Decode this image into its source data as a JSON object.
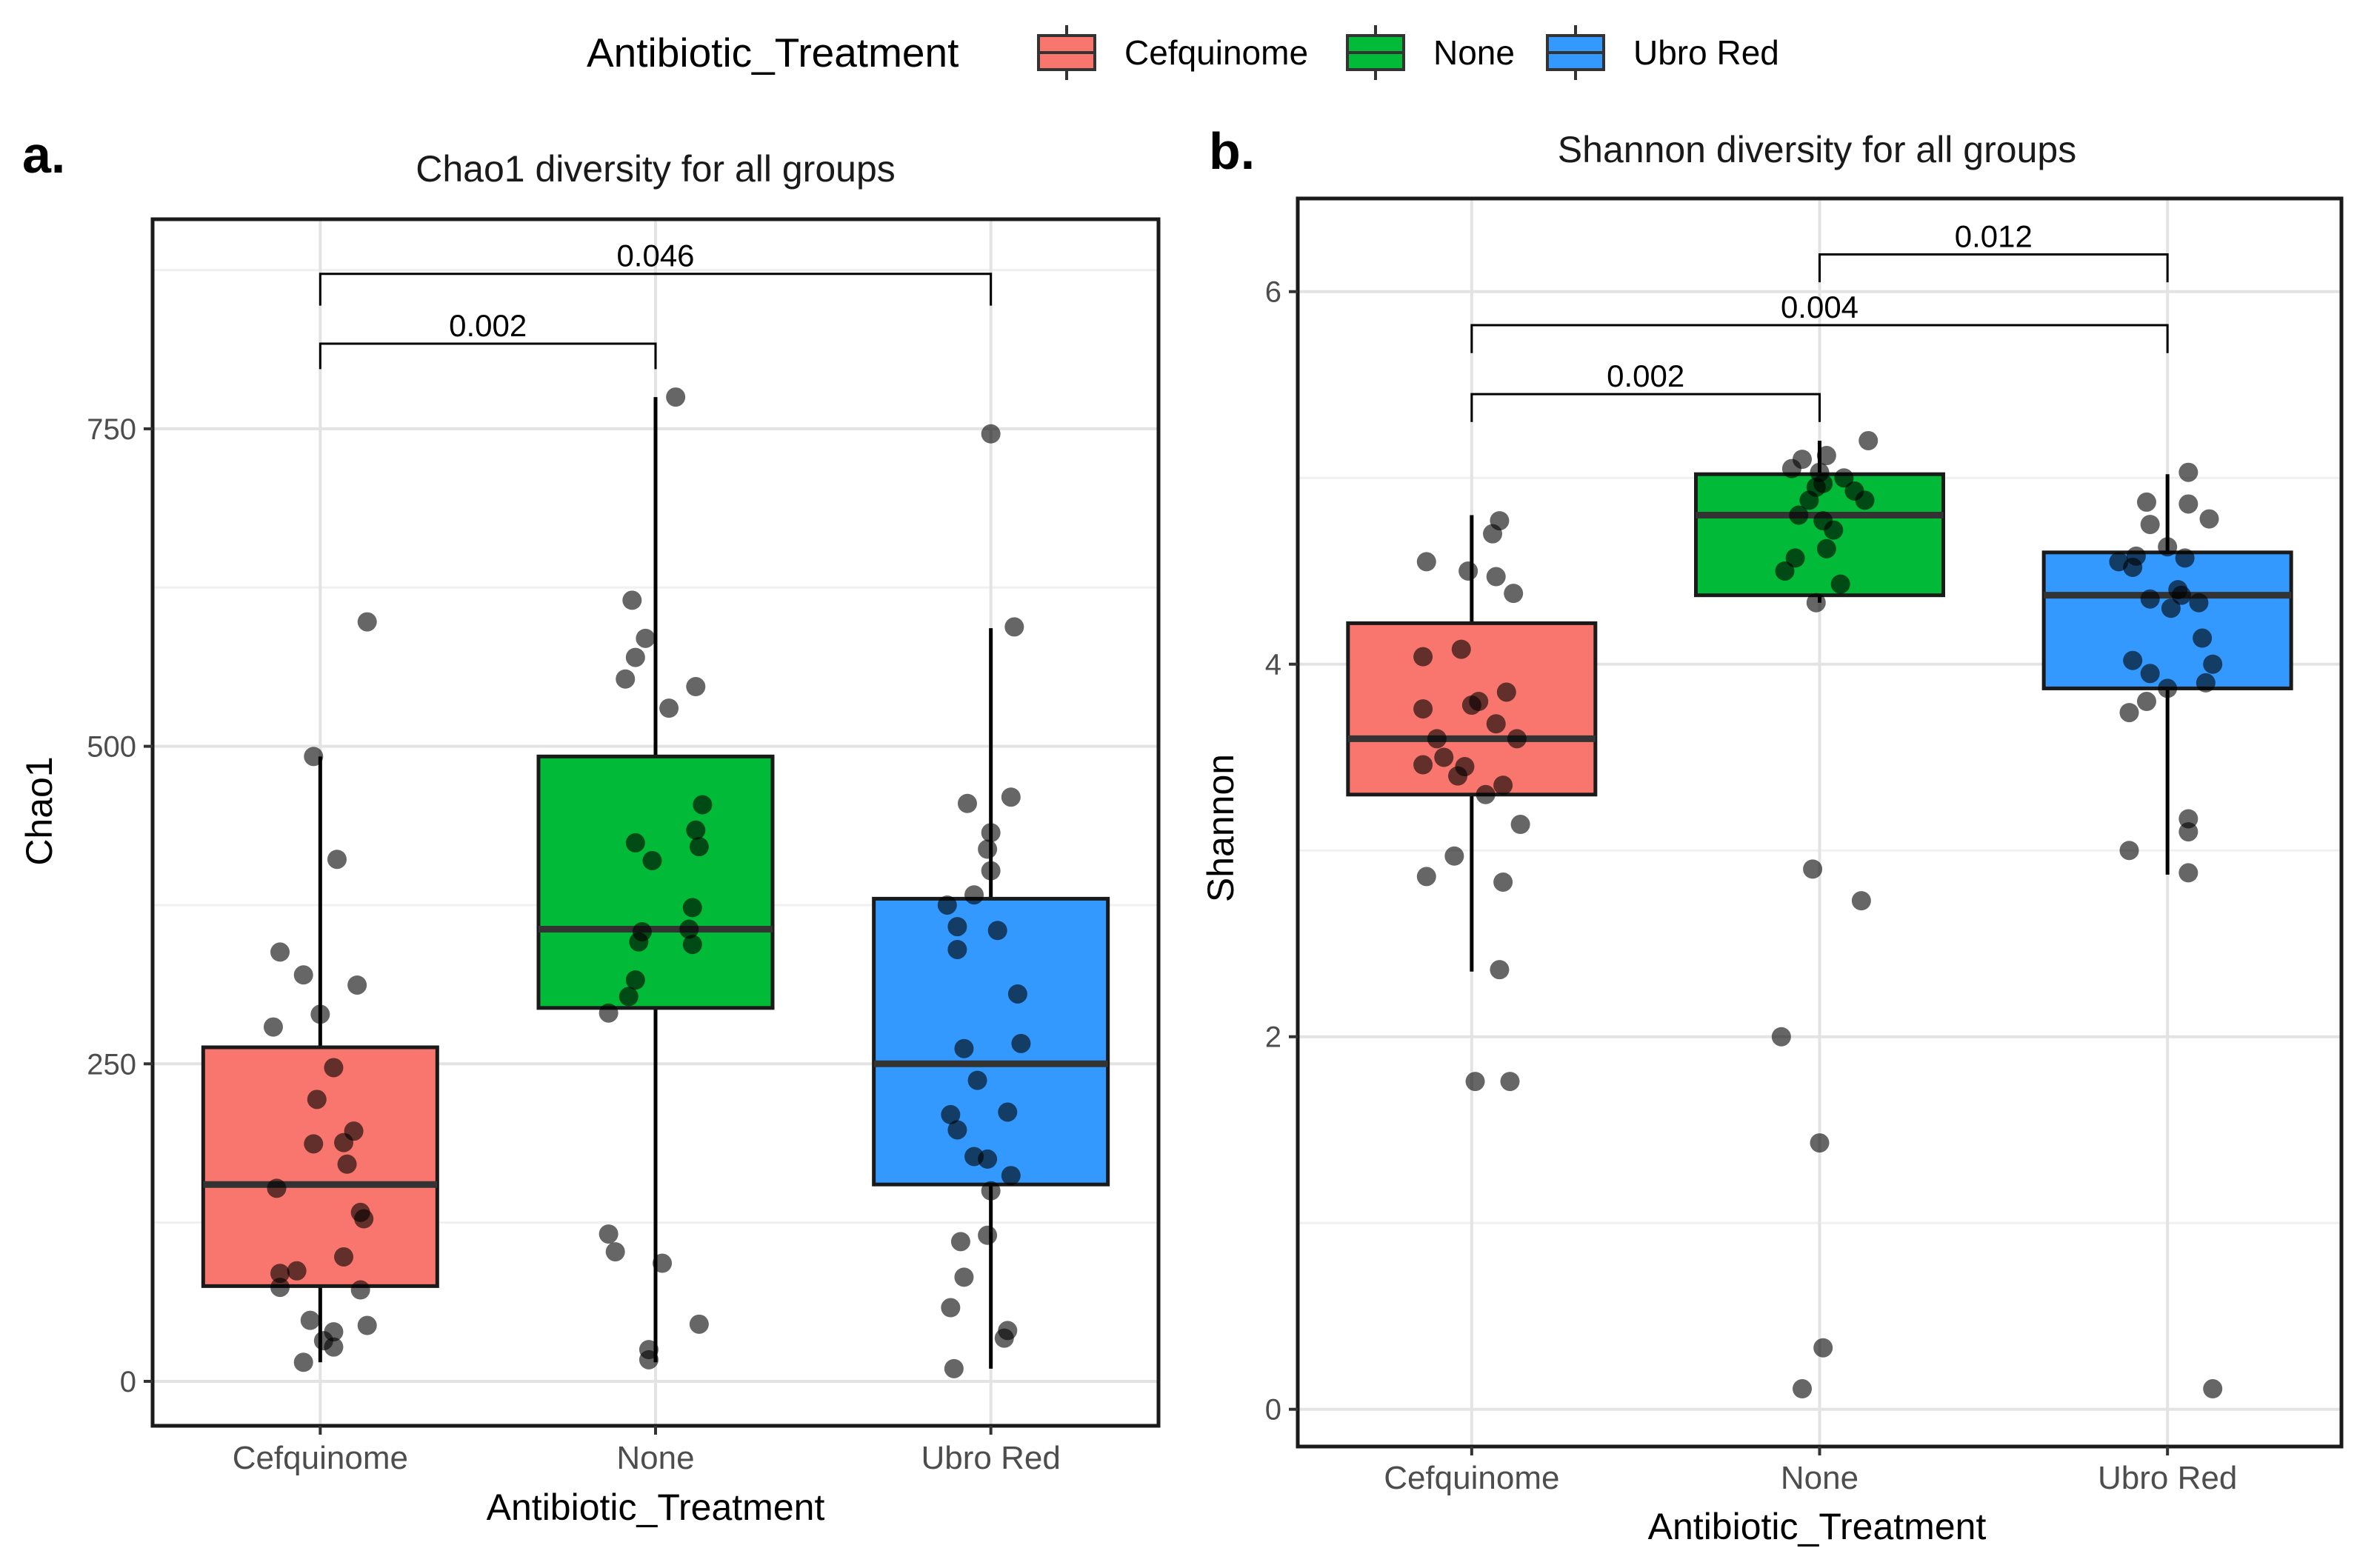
{
  "legend": {
    "title": "Antibiotic_Treatment",
    "entries": [
      {
        "label": "Cefquinome",
        "color": "#F8766D"
      },
      {
        "label": "None",
        "color": "#00BA38"
      },
      {
        "label": "Ubro Red",
        "color": "#3399FF"
      }
    ]
  },
  "chart_data": [
    {
      "panel": "a.",
      "type": "boxplot",
      "title": "Chao1 diversity for all groups",
      "xlabel": "Antibiotic_Treatment",
      "ylabel": "Chao1",
      "categories": [
        "Cefquinome",
        "None",
        "Ubro Red"
      ],
      "ylim": [
        -35,
        915
      ],
      "yticks": [
        0,
        250,
        500,
        750
      ],
      "grid": true,
      "boxes": [
        {
          "category": "Cefquinome",
          "q1": 75,
          "median": 155,
          "q3": 263,
          "whisker_low": 15,
          "whisker_high": 492
        },
        {
          "category": "None",
          "q1": 294,
          "median": 356,
          "q3": 492,
          "whisker_low": 15,
          "whisker_high": 775
        },
        {
          "category": "Ubro Red",
          "q1": 155,
          "median": 250,
          "q3": 380,
          "whisker_low": 10,
          "whisker_high": 593
        }
      ],
      "points": [
        [
          {
            "x": 0.14,
            "y": 598
          },
          {
            "x": -0.02,
            "y": 492
          },
          {
            "x": 0.05,
            "y": 411
          },
          {
            "x": -0.12,
            "y": 338
          },
          {
            "x": -0.05,
            "y": 320
          },
          {
            "x": 0.0,
            "y": 289
          },
          {
            "x": 0.11,
            "y": 312
          },
          {
            "x": -0.14,
            "y": 279
          },
          {
            "x": 0.04,
            "y": 247
          },
          {
            "x": 0.1,
            "y": 197
          },
          {
            "x": -0.01,
            "y": 222
          },
          {
            "x": 0.07,
            "y": 188
          },
          {
            "x": 0.08,
            "y": 171
          },
          {
            "x": -0.13,
            "y": 152
          },
          {
            "x": -0.02,
            "y": 187
          },
          {
            "x": 0.13,
            "y": 128
          },
          {
            "x": 0.12,
            "y": 133
          },
          {
            "x": 0.07,
            "y": 98
          },
          {
            "x": -0.12,
            "y": 85
          },
          {
            "x": -0.07,
            "y": 87
          },
          {
            "x": -0.12,
            "y": 74
          },
          {
            "x": 0.12,
            "y": 72
          },
          {
            "x": -0.03,
            "y": 48
          },
          {
            "x": 0.14,
            "y": 44
          },
          {
            "x": 0.04,
            "y": 39
          },
          {
            "x": 0.01,
            "y": 32
          },
          {
            "x": 0.04,
            "y": 27
          },
          {
            "x": -0.05,
            "y": 15
          }
        ],
        [
          {
            "x": 0.06,
            "y": 775
          },
          {
            "x": -0.07,
            "y": 615
          },
          {
            "x": -0.03,
            "y": 585
          },
          {
            "x": -0.06,
            "y": 570
          },
          {
            "x": -0.09,
            "y": 553
          },
          {
            "x": 0.12,
            "y": 547
          },
          {
            "x": 0.04,
            "y": 530
          },
          {
            "x": 0.14,
            "y": 454
          },
          {
            "x": 0.12,
            "y": 434
          },
          {
            "x": -0.06,
            "y": 424
          },
          {
            "x": -0.01,
            "y": 410
          },
          {
            "x": 0.13,
            "y": 421
          },
          {
            "x": 0.11,
            "y": 373
          },
          {
            "x": 0.1,
            "y": 356
          },
          {
            "x": -0.04,
            "y": 354
          },
          {
            "x": -0.05,
            "y": 346
          },
          {
            "x": 0.11,
            "y": 344
          },
          {
            "x": -0.06,
            "y": 316
          },
          {
            "x": -0.08,
            "y": 303
          },
          {
            "x": -0.14,
            "y": 290
          },
          {
            "x": -0.14,
            "y": 116
          },
          {
            "x": -0.12,
            "y": 102
          },
          {
            "x": 0.02,
            "y": 93
          },
          {
            "x": 0.13,
            "y": 45
          },
          {
            "x": -0.02,
            "y": 25
          },
          {
            "x": -0.02,
            "y": 17
          }
        ],
        [
          {
            "x": 0.0,
            "y": 746
          },
          {
            "x": 0.07,
            "y": 594
          },
          {
            "x": 0.06,
            "y": 460
          },
          {
            "x": -0.07,
            "y": 455
          },
          {
            "x": 0.0,
            "y": 432
          },
          {
            "x": -0.01,
            "y": 419
          },
          {
            "x": 0.0,
            "y": 402
          },
          {
            "x": -0.05,
            "y": 383
          },
          {
            "x": -0.13,
            "y": 375
          },
          {
            "x": -0.1,
            "y": 358
          },
          {
            "x": 0.02,
            "y": 355
          },
          {
            "x": -0.1,
            "y": 340
          },
          {
            "x": 0.08,
            "y": 305
          },
          {
            "x": 0.09,
            "y": 266
          },
          {
            "x": -0.08,
            "y": 262
          },
          {
            "x": -0.04,
            "y": 237
          },
          {
            "x": 0.05,
            "y": 212
          },
          {
            "x": -0.12,
            "y": 210
          },
          {
            "x": -0.1,
            "y": 198
          },
          {
            "x": -0.05,
            "y": 177
          },
          {
            "x": -0.01,
            "y": 175
          },
          {
            "x": 0.06,
            "y": 162
          },
          {
            "x": 0.0,
            "y": 150
          },
          {
            "x": -0.01,
            "y": 115
          },
          {
            "x": -0.09,
            "y": 110
          },
          {
            "x": -0.08,
            "y": 82
          },
          {
            "x": -0.12,
            "y": 58
          },
          {
            "x": 0.05,
            "y": 40
          },
          {
            "x": 0.04,
            "y": 34
          },
          {
            "x": -0.11,
            "y": 10
          }
        ]
      ],
      "comparisons": [
        {
          "from": 0,
          "to": 1,
          "p": "0.002",
          "y": 817,
          "tip": 20
        },
        {
          "from": 0,
          "to": 2,
          "p": "0.046",
          "y": 872,
          "tip": 25
        }
      ]
    },
    {
      "panel": "b.",
      "type": "boxplot",
      "title": "Shannon diversity for all groups",
      "xlabel": "Antibiotic_Treatment",
      "ylabel": "Shannon",
      "categories": [
        "Cefquinome",
        "None",
        "Ubro Red"
      ],
      "ylim": [
        -0.2,
        6.5
      ],
      "yticks": [
        0,
        2,
        4,
        6
      ],
      "grid": true,
      "boxes": [
        {
          "category": "Cefquinome",
          "q1": 3.3,
          "median": 3.6,
          "q3": 4.22,
          "whisker_low": 2.35,
          "whisker_high": 4.8
        },
        {
          "category": "None",
          "q1": 4.37,
          "median": 4.8,
          "q3": 5.02,
          "whisker_low": 4.33,
          "whisker_high": 5.2
        },
        {
          "category": "Ubro Red",
          "q1": 3.87,
          "median": 4.37,
          "q3": 4.6,
          "whisker_low": 2.87,
          "whisker_high": 5.02
        }
      ],
      "points": [
        [
          {
            "x": 0.08,
            "y": 4.77
          },
          {
            "x": 0.06,
            "y": 4.7
          },
          {
            "x": -0.13,
            "y": 4.55
          },
          {
            "x": -0.01,
            "y": 4.5
          },
          {
            "x": 0.07,
            "y": 4.47
          },
          {
            "x": 0.12,
            "y": 4.38
          },
          {
            "x": -0.14,
            "y": 4.04
          },
          {
            "x": -0.03,
            "y": 4.08
          },
          {
            "x": 0.1,
            "y": 3.85
          },
          {
            "x": 0.02,
            "y": 3.8
          },
          {
            "x": -0.14,
            "y": 3.76
          },
          {
            "x": 0.0,
            "y": 3.78
          },
          {
            "x": 0.07,
            "y": 3.68
          },
          {
            "x": -0.1,
            "y": 3.6
          },
          {
            "x": 0.13,
            "y": 3.6
          },
          {
            "x": -0.08,
            "y": 3.5
          },
          {
            "x": -0.02,
            "y": 3.45
          },
          {
            "x": -0.14,
            "y": 3.46
          },
          {
            "x": -0.04,
            "y": 3.4
          },
          {
            "x": 0.09,
            "y": 3.35
          },
          {
            "x": 0.04,
            "y": 3.3
          },
          {
            "x": 0.14,
            "y": 3.14
          },
          {
            "x": -0.05,
            "y": 2.97
          },
          {
            "x": -0.13,
            "y": 2.86
          },
          {
            "x": 0.09,
            "y": 2.83
          },
          {
            "x": 0.08,
            "y": 2.36
          },
          {
            "x": 0.01,
            "y": 1.76
          },
          {
            "x": 0.11,
            "y": 1.76
          }
        ],
        [
          {
            "x": 0.14,
            "y": 5.2
          },
          {
            "x": -0.05,
            "y": 5.1
          },
          {
            "x": 0.02,
            "y": 5.12
          },
          {
            "x": -0.08,
            "y": 5.05
          },
          {
            "x": 0.07,
            "y": 5.0
          },
          {
            "x": 0.0,
            "y": 5.03
          },
          {
            "x": 0.01,
            "y": 4.97
          },
          {
            "x": -0.01,
            "y": 4.95
          },
          {
            "x": 0.1,
            "y": 4.93
          },
          {
            "x": -0.03,
            "y": 4.88
          },
          {
            "x": 0.13,
            "y": 4.88
          },
          {
            "x": -0.06,
            "y": 4.8
          },
          {
            "x": 0.01,
            "y": 4.77
          },
          {
            "x": 0.04,
            "y": 4.72
          },
          {
            "x": 0.02,
            "y": 4.62
          },
          {
            "x": -0.07,
            "y": 4.57
          },
          {
            "x": -0.1,
            "y": 4.5
          },
          {
            "x": 0.06,
            "y": 4.43
          },
          {
            "x": -0.01,
            "y": 4.33
          },
          {
            "x": -0.02,
            "y": 2.9
          },
          {
            "x": 0.12,
            "y": 2.73
          },
          {
            "x": -0.11,
            "y": 2.0
          },
          {
            "x": 0.0,
            "y": 1.43
          },
          {
            "x": 0.01,
            "y": 0.33
          },
          {
            "x": -0.05,
            "y": 0.11
          }
        ],
        [
          {
            "x": 0.06,
            "y": 5.03
          },
          {
            "x": -0.06,
            "y": 4.87
          },
          {
            "x": 0.06,
            "y": 4.86
          },
          {
            "x": 0.12,
            "y": 4.78
          },
          {
            "x": -0.05,
            "y": 4.75
          },
          {
            "x": 0.0,
            "y": 4.63
          },
          {
            "x": -0.09,
            "y": 4.58
          },
          {
            "x": 0.05,
            "y": 4.57
          },
          {
            "x": -0.14,
            "y": 4.55
          },
          {
            "x": -0.1,
            "y": 4.52
          },
          {
            "x": 0.03,
            "y": 4.4
          },
          {
            "x": 0.04,
            "y": 4.37
          },
          {
            "x": -0.05,
            "y": 4.35
          },
          {
            "x": 0.09,
            "y": 4.33
          },
          {
            "x": 0.01,
            "y": 4.3
          },
          {
            "x": 0.1,
            "y": 4.14
          },
          {
            "x": -0.1,
            "y": 4.02
          },
          {
            "x": 0.13,
            "y": 4.0
          },
          {
            "x": -0.05,
            "y": 3.95
          },
          {
            "x": 0.11,
            "y": 3.9
          },
          {
            "x": 0.0,
            "y": 3.87
          },
          {
            "x": -0.06,
            "y": 3.8
          },
          {
            "x": -0.11,
            "y": 3.74
          },
          {
            "x": 0.06,
            "y": 3.17
          },
          {
            "x": 0.06,
            "y": 3.1
          },
          {
            "x": -0.11,
            "y": 3.0
          },
          {
            "x": 0.06,
            "y": 2.88
          },
          {
            "x": 0.13,
            "y": 0.11
          }
        ]
      ],
      "comparisons": [
        {
          "from": 0,
          "to": 1,
          "p": "0.002",
          "y": 5.45,
          "tip": 0.15
        },
        {
          "from": 0,
          "to": 2,
          "p": "0.004",
          "y": 5.82,
          "tip": 0.15
        },
        {
          "from": 1,
          "to": 2,
          "p": "0.012",
          "y": 6.2,
          "tip": 0.15
        }
      ]
    }
  ]
}
